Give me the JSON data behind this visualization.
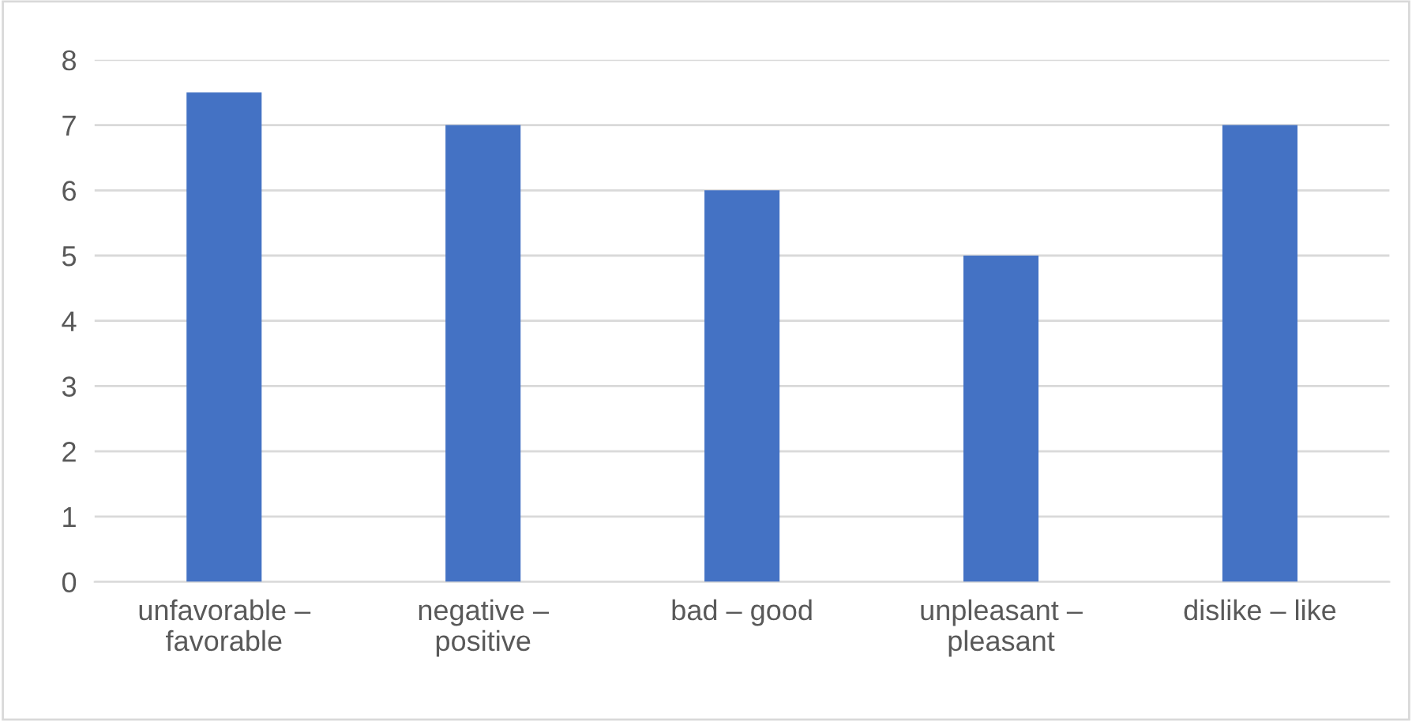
{
  "chart_data": {
    "type": "bar",
    "categories": [
      "unfavorable –\nfavorable",
      "negative –\npositive",
      "bad – good",
      "unpleasant –\npleasant",
      "dislike – like"
    ],
    "values": [
      7.5,
      7,
      6,
      5,
      7
    ],
    "color": "#4472c4",
    "ylim": [
      0,
      8
    ],
    "yticks": [
      0,
      1,
      2,
      3,
      4,
      5,
      6,
      7,
      8
    ],
    "grid": "y",
    "legend": false
  }
}
